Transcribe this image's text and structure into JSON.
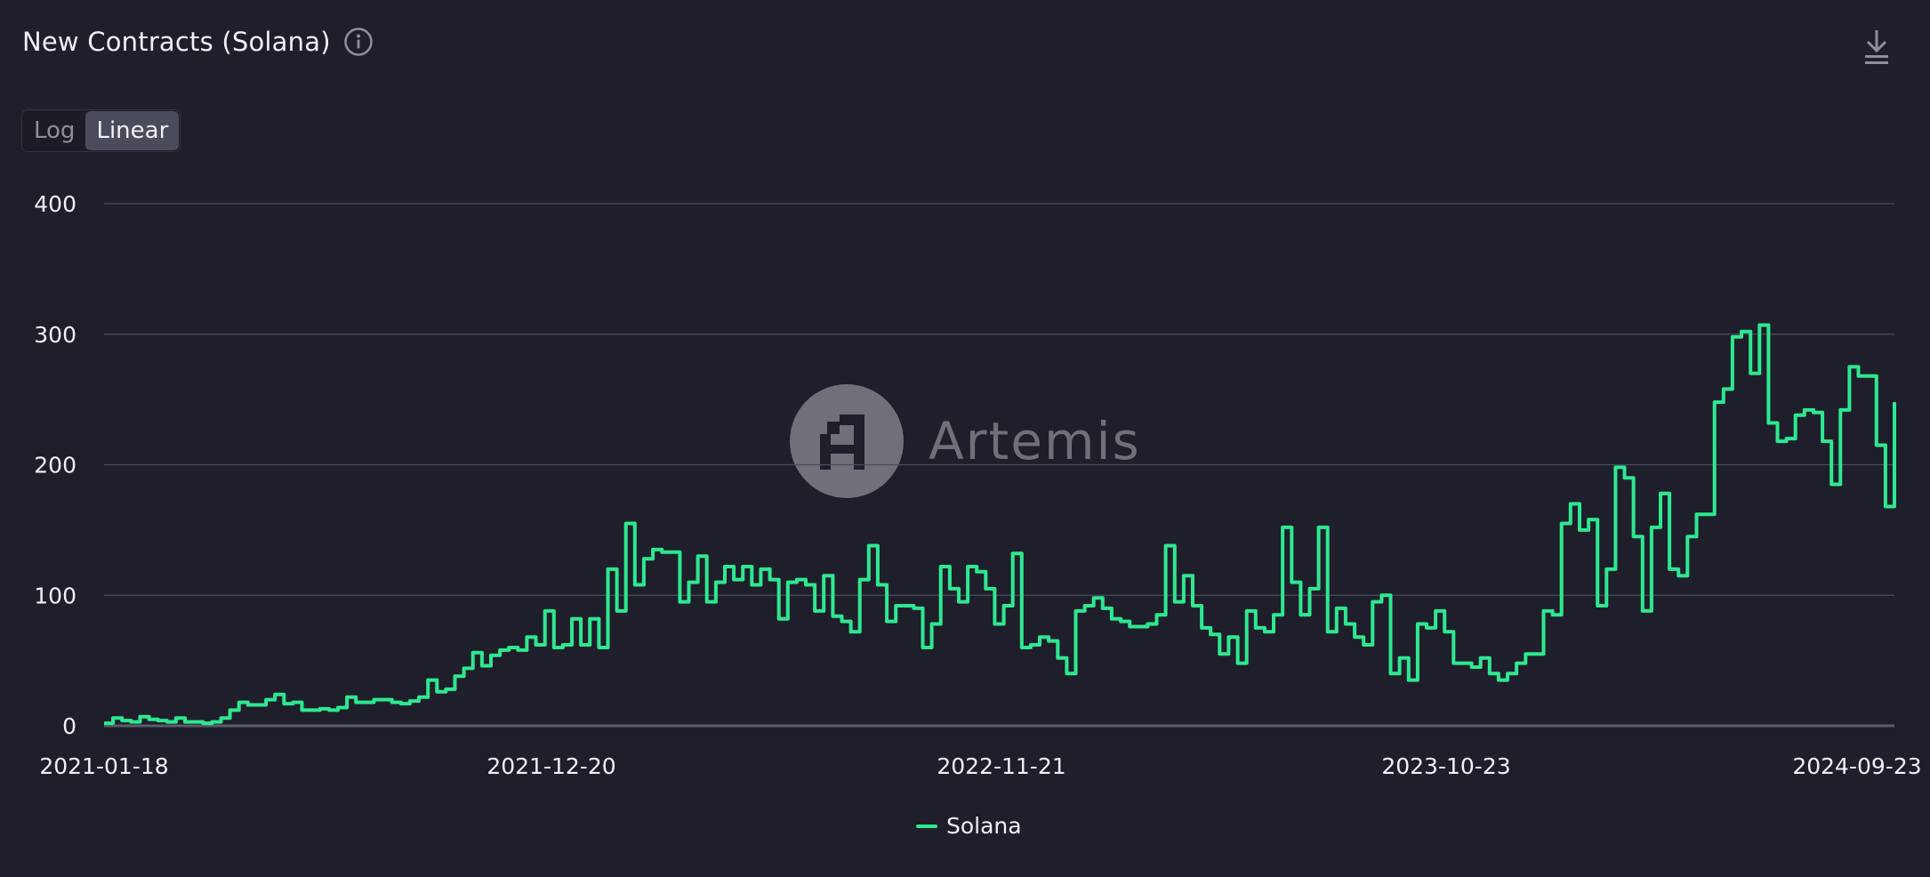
{
  "header": {
    "title": "New Contracts (Solana)",
    "info_icon": "info-icon",
    "download_icon": "download-icon"
  },
  "scale_toggle": {
    "options": [
      "Log",
      "Linear"
    ],
    "selected": "Linear"
  },
  "watermark": {
    "text": "Artemis",
    "logo_icon": "artemis-logo-icon"
  },
  "colors": {
    "background": "#1e1f2b",
    "grid": "#4a4c5a",
    "series": "#2ee88f"
  },
  "chart_data": {
    "type": "line",
    "step": true,
    "x_start": "2021-01-18",
    "x_end": "2024-09-23",
    "x_interval": "weekly",
    "x_tick_labels": [
      "2021-01-18",
      "2021-12-20",
      "2022-11-21",
      "2023-10-23",
      "2024-09-23"
    ],
    "y_ticks": [
      0,
      100,
      200,
      300,
      400
    ],
    "ylim": [
      0,
      400
    ],
    "grid": true,
    "legend": "bottom-center",
    "series": [
      {
        "name": "Solana",
        "color": "#2ee88f",
        "values": [
          2,
          6,
          4,
          3,
          7,
          5,
          4,
          3,
          6,
          3,
          3,
          2,
          3,
          6,
          12,
          18,
          16,
          16,
          20,
          24,
          17,
          18,
          12,
          12,
          13,
          12,
          14,
          22,
          18,
          18,
          20,
          20,
          18,
          17,
          19,
          22,
          35,
          26,
          28,
          38,
          44,
          56,
          46,
          54,
          58,
          60,
          58,
          68,
          62,
          88,
          60,
          62,
          82,
          62,
          82,
          60,
          120,
          88,
          155,
          108,
          128,
          135,
          133,
          133,
          95,
          110,
          130,
          95,
          110,
          122,
          112,
          122,
          108,
          120,
          112,
          82,
          110,
          112,
          108,
          88,
          115,
          84,
          80,
          72,
          112,
          138,
          108,
          80,
          92,
          92,
          90,
          60,
          78,
          122,
          105,
          95,
          122,
          118,
          105,
          78,
          92,
          132,
          60,
          62,
          68,
          65,
          52,
          40,
          88,
          92,
          98,
          90,
          82,
          80,
          76,
          76,
          78,
          85,
          138,
          95,
          115,
          92,
          75,
          70,
          55,
          68,
          48,
          88,
          75,
          72,
          85,
          152,
          110,
          85,
          105,
          152,
          72,
          90,
          78,
          68,
          62,
          95,
          100,
          40,
          52,
          35,
          78,
          75,
          88,
          72,
          48,
          48,
          45,
          52,
          40,
          35,
          40,
          48,
          55,
          55,
          88,
          85,
          155,
          170,
          150,
          158,
          92,
          120,
          198,
          190,
          145,
          88,
          152,
          178,
          120,
          115,
          145,
          162,
          162,
          248,
          258,
          298,
          302,
          270,
          307,
          232,
          218,
          220,
          238,
          242,
          240,
          218,
          185,
          242,
          275,
          268,
          268,
          215,
          168,
          248
        ]
      }
    ]
  }
}
